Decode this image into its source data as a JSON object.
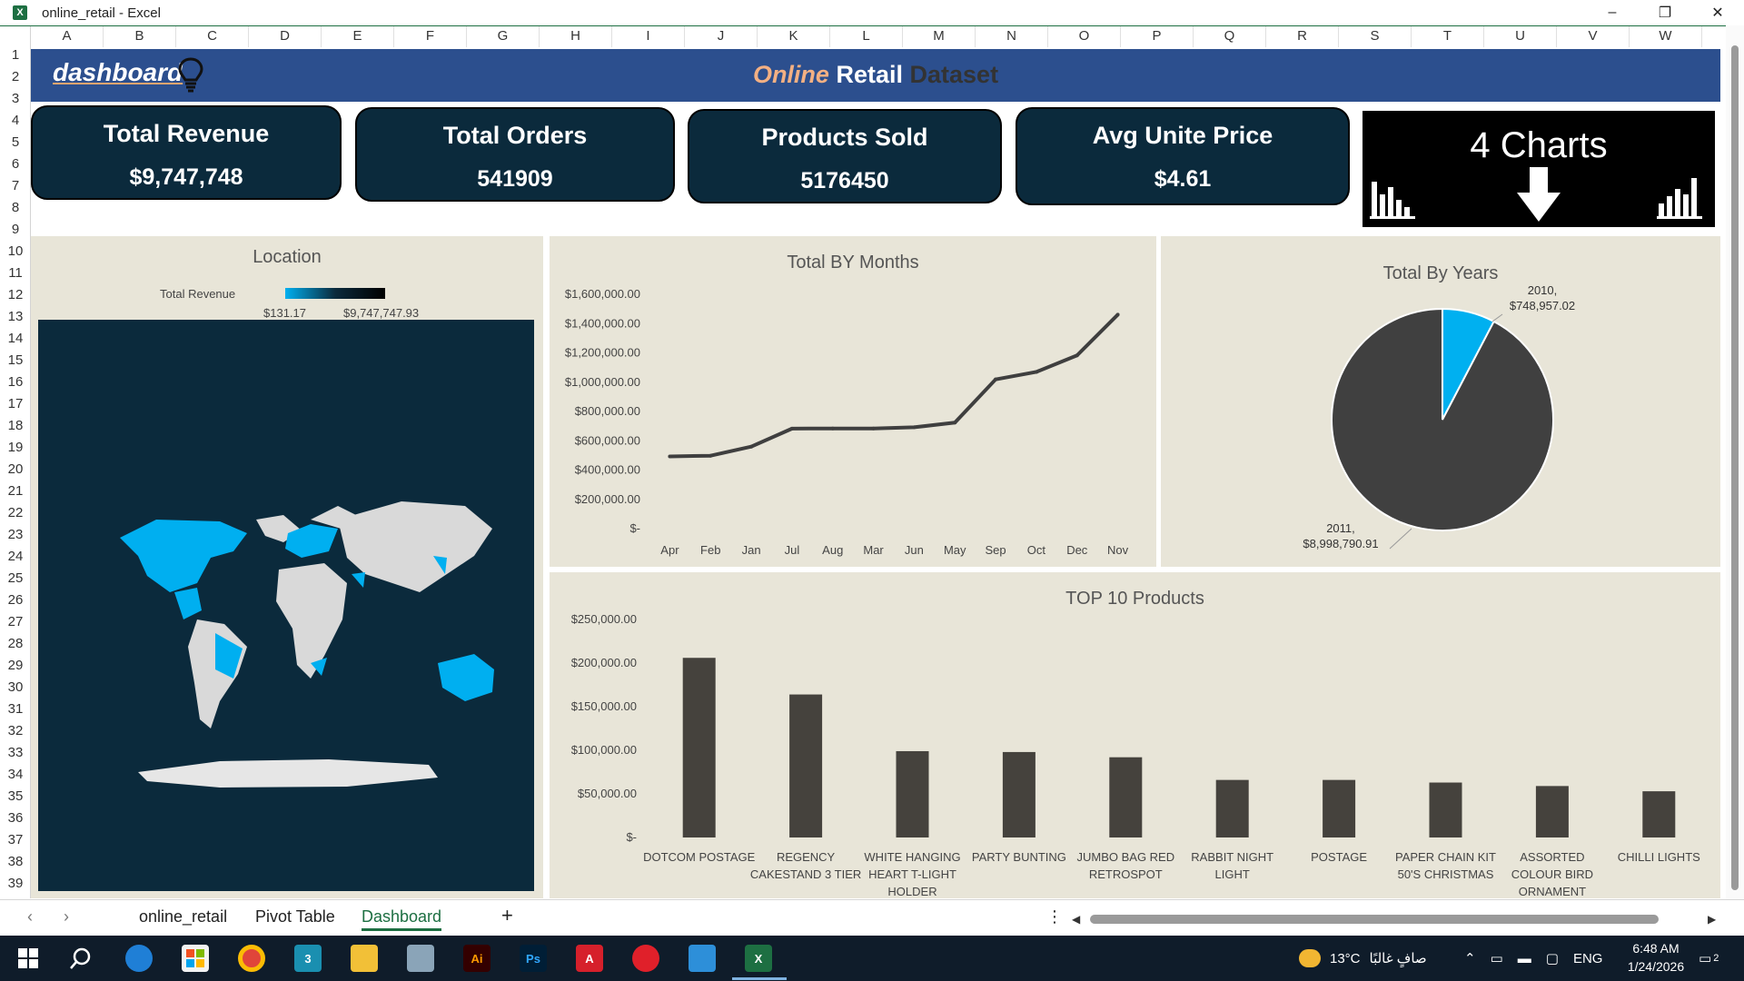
{
  "window": {
    "title": "online_retail - Excel",
    "minimize": "–",
    "restore": "❐",
    "close": "✕"
  },
  "columns": [
    "A",
    "B",
    "C",
    "D",
    "E",
    "F",
    "G",
    "H",
    "I",
    "J",
    "K",
    "L",
    "M",
    "N",
    "O",
    "P",
    "Q",
    "R",
    "S",
    "T",
    "U",
    "V",
    "W"
  ],
  "rows": [
    "1",
    "2",
    "3",
    "4",
    "5",
    "6",
    "7",
    "8",
    "9",
    "10",
    "11",
    "12",
    "13",
    "14",
    "15",
    "16",
    "17",
    "18",
    "19",
    "20",
    "21",
    "22",
    "23",
    "24",
    "25",
    "26",
    "27",
    "28",
    "29",
    "30",
    "31",
    "32",
    "33",
    "34",
    "35",
    "36",
    "37",
    "38",
    "39"
  ],
  "header": {
    "brand": "dashboard",
    "title_part1": "Online",
    "title_part2": "Retail",
    "title_part3": "Dataset"
  },
  "kpis": [
    {
      "label": "Total Revenue",
      "value": "$9,747,748"
    },
    {
      "label": "Total Orders",
      "value": "541909"
    },
    {
      "label": "Products Sold",
      "value": "5176450"
    },
    {
      "label": "Avg Unite Price",
      "value": "$4.61"
    }
  ],
  "charts_box": {
    "label": "4 Charts"
  },
  "location": {
    "title": "Location",
    "legend_label": "Total Revenue",
    "legend_min": "$131.17",
    "legend_max": "$9,747,747.93"
  },
  "chart_data": [
    {
      "type": "line",
      "title": "Total BY Months",
      "categories": [
        "Apr",
        "Feb",
        "Jan",
        "Jul",
        "Aug",
        "Mar",
        "Jun",
        "May",
        "Sep",
        "Oct",
        "Dec",
        "Nov"
      ],
      "values": [
        493000,
        498000,
        560000,
        683000,
        684000,
        684000,
        692000,
        724000,
        1019000,
        1070000,
        1183000,
        1461000
      ],
      "y_ticks": [
        "$1,600,000.00",
        "$1,400,000.00",
        "$1,200,000.00",
        "$1,000,000.00",
        "$800,000.00",
        "$600,000.00",
        "$400,000.00",
        "$200,000.00",
        "$-"
      ],
      "ylim": [
        0,
        1600000
      ],
      "color": "#3f3f3f"
    },
    {
      "type": "pie",
      "title": "Total By Years",
      "slices": [
        {
          "label": "2010,",
          "value_label": "$748,957.02",
          "value": 748957.02,
          "color": "#00b0f0"
        },
        {
          "label": "2011,",
          "value_label": "$8,998,790.91",
          "value": 8998790.91,
          "color": "#404040"
        }
      ]
    },
    {
      "type": "bar",
      "title": "TOP 10 Products",
      "categories": [
        [
          "DOTCOM POSTAGE"
        ],
        [
          "REGENCY",
          "CAKESTAND 3 TIER"
        ],
        [
          "WHITE HANGING",
          "HEART T-LIGHT",
          "HOLDER"
        ],
        [
          "PARTY BUNTING"
        ],
        [
          "JUMBO BAG RED",
          "RETROSPOT"
        ],
        [
          "RABBIT NIGHT",
          "LIGHT"
        ],
        [
          "POSTAGE"
        ],
        [
          "PAPER CHAIN KIT",
          "50'S CHRISTMAS"
        ],
        [
          "ASSORTED",
          "COLOUR BIRD",
          "ORNAMENT"
        ],
        [
          "CHILLI LIGHTS"
        ]
      ],
      "values": [
        206000,
        164000,
        99000,
        98000,
        92000,
        66000,
        66000,
        63000,
        59000,
        53000
      ],
      "y_ticks": [
        "$250,000.00",
        "$200,000.00",
        "$150,000.00",
        "$100,000.00",
        "$50,000.00",
        "$-"
      ],
      "ylim": [
        0,
        250000
      ],
      "color": "#45423d"
    }
  ],
  "sheet_tabs": {
    "tab1": "online_retail",
    "tab2": "Pivot Table",
    "tab3": "Dashboard",
    "add": "+",
    "prev": "‹",
    "next": "›",
    "more": "⋮"
  },
  "taskbar": {
    "weather": "13°C",
    "weather_desc": "صافٍ غالبًا",
    "lang": "ENG",
    "time": "6:48 AM",
    "date": "1/24/2026",
    "notif_count": "2",
    "icons": [
      "windows-start-icon",
      "search-icon",
      "edge-icon",
      "store-icon",
      "chrome-icon",
      "3dsmax-icon",
      "file-explorer-icon",
      "printer-icon",
      "illustrator-icon",
      "photoshop-icon",
      "autocad-icon",
      "media-icon",
      "app-icon",
      "excel-icon"
    ]
  }
}
